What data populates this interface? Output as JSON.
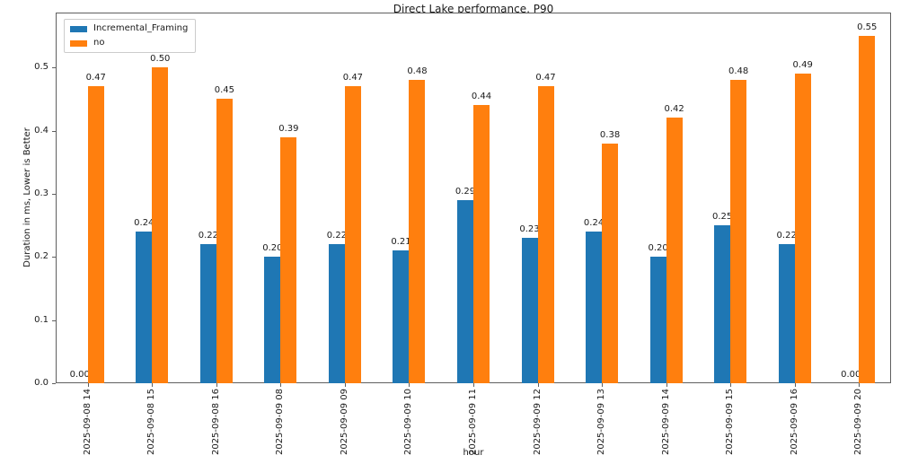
{
  "chart_data": {
    "type": "bar",
    "title": "Direct Lake performance, P90",
    "xlabel": "hour",
    "ylabel": "Duration in ms, Lower is Better",
    "categories": [
      "2025-09-08 14",
      "2025-09-08 15",
      "2025-09-08 16",
      "2025-09-09 08",
      "2025-09-09 09",
      "2025-09-09 10",
      "2025-09-09 11",
      "2025-09-09 12",
      "2025-09-09 13",
      "2025-09-09 14",
      "2025-09-09 15",
      "2025-09-09 16",
      "2025-09-09 20"
    ],
    "series": [
      {
        "name": "Incremental_Framing",
        "color": "#1f77b4",
        "values": [
          0.0,
          0.24,
          0.22,
          0.2,
          0.22,
          0.21,
          0.29,
          0.23,
          0.24,
          0.2,
          0.25,
          0.22,
          0.0
        ]
      },
      {
        "name": "no",
        "color": "#ff7f0e",
        "values": [
          0.47,
          0.5,
          0.45,
          0.39,
          0.47,
          0.48,
          0.44,
          0.47,
          0.38,
          0.42,
          0.48,
          0.49,
          0.55
        ]
      }
    ],
    "ylim": [
      0,
      0.587
    ],
    "yticks": [
      0.0,
      0.1,
      0.2,
      0.3,
      0.4,
      0.5
    ],
    "ytick_format_decimals": 1,
    "bar_label_decimals": 2,
    "grid": false,
    "legend_position": "upper left"
  }
}
